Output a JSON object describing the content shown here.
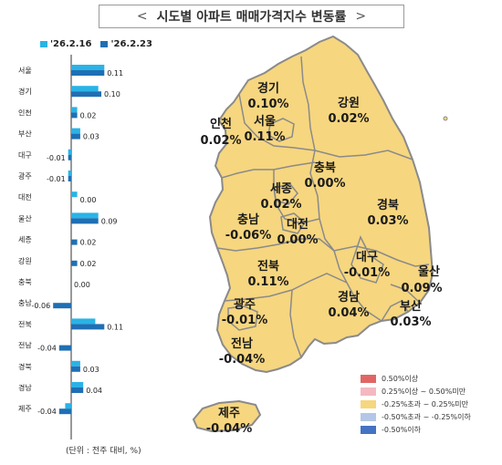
{
  "title": {
    "left_chevron": "<",
    "text": "시도별 아파트 매매가격지수 변동률",
    "right_chevron": ">"
  },
  "chart_data": {
    "type": "bar",
    "orientation": "horizontal",
    "title": "",
    "categories": [
      "서울",
      "경기",
      "인천",
      "부산",
      "대구",
      "광주",
      "대전",
      "울산",
      "세종",
      "강원",
      "충북",
      "충남",
      "전북",
      "전남",
      "경북",
      "경남",
      "제주"
    ],
    "series": [
      {
        "name": "'26.2.16",
        "color": "#2ab3e6",
        "values": [
          0.11,
          0.09,
          0.02,
          0.03,
          -0.01,
          -0.01,
          0.02,
          0.09,
          0.0,
          0.0,
          0.0,
          0.0,
          0.08,
          0.0,
          0.03,
          0.04,
          -0.02
        ]
      },
      {
        "name": "'26.2.23",
        "color": "#1f6fb4",
        "values": [
          0.11,
          0.1,
          0.02,
          0.03,
          -0.01,
          -0.01,
          0.0,
          0.09,
          0.02,
          0.02,
          0.0,
          -0.06,
          0.11,
          -0.04,
          0.03,
          0.04,
          -0.04
        ]
      }
    ],
    "data_labels": [
      "0.11",
      "0.10",
      "0.02",
      "0.03",
      "-0.01",
      "-0.01",
      "0.00",
      "0.09",
      "0.02",
      "0.02",
      "0.00",
      "-0.06",
      "0.11",
      "-0.04",
      "0.03",
      "0.04",
      "-0.04"
    ],
    "legend_placement": "top-left",
    "grid": false
  },
  "unit_note": "(단위 : 전주 대비, %)",
  "map_regions": [
    {
      "name": "경기",
      "value": "0.10%"
    },
    {
      "name": "강원",
      "value": "0.02%"
    },
    {
      "name": "인천",
      "value": "0.02%"
    },
    {
      "name": "서울",
      "value": "0.11%"
    },
    {
      "name": "충북",
      "value": "0.00%"
    },
    {
      "name": "세종",
      "value": "0.02%"
    },
    {
      "name": "경북",
      "value": "0.03%"
    },
    {
      "name": "충남",
      "value": "-0.06%"
    },
    {
      "name": "대전",
      "value": "0.00%"
    },
    {
      "name": "대구",
      "value": "-0.01%"
    },
    {
      "name": "전북",
      "value": "0.11%"
    },
    {
      "name": "울산",
      "value": "0.09%"
    },
    {
      "name": "광주",
      "value": "-0.01%"
    },
    {
      "name": "경남",
      "value": "0.04%"
    },
    {
      "name": "부산",
      "value": "0.03%"
    },
    {
      "name": "전남",
      "value": "-0.04%"
    },
    {
      "name": "제주",
      "value": "-0.04%"
    }
  ],
  "map_colors": {
    "fill": "#f6d67f",
    "stroke": "#8a8a8a"
  },
  "map_legend": [
    {
      "label": "0.50%이상",
      "color": "#e06666"
    },
    {
      "label": "0.25%이상 ~ 0.50%미만",
      "color": "#f4b8c0"
    },
    {
      "label": "-0.25%초과 ~ 0.25%미만",
      "color": "#f6d67f"
    },
    {
      "label": "-0.50%초과 ~ -0.25%이하",
      "color": "#b4c7e7"
    },
    {
      "label": "-0.50%이하",
      "color": "#4472c4"
    }
  ]
}
